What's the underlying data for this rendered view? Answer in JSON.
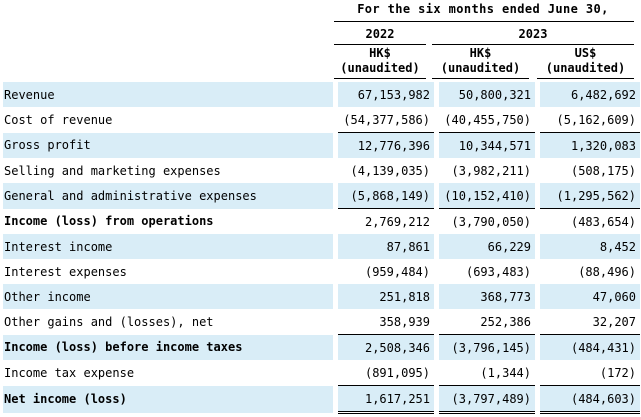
{
  "header": {
    "period": "For the six months ended June 30,",
    "year_a": "2022",
    "year_b": "2023",
    "columns": [
      {
        "currency": "HK$",
        "status": "(unaudited)"
      },
      {
        "currency": "HK$",
        "status": "(unaudited)"
      },
      {
        "currency": "US$",
        "status": "(unaudited)"
      }
    ]
  },
  "rows": [
    {
      "label": "Revenue",
      "v1": "67,153,982",
      "v2": "50,800,321",
      "v3": "6,482,692"
    },
    {
      "label": "Cost of revenue",
      "v1": "(54,377,586)",
      "v2": "(40,455,750)",
      "v3": "(5,162,609)"
    },
    {
      "label": "Gross profit",
      "v1": "12,776,396",
      "v2": "10,344,571",
      "v3": "1,320,083"
    },
    {
      "label": "Selling and marketing expenses",
      "v1": "(4,139,035)",
      "v2": "(3,982,211)",
      "v3": "(508,175)"
    },
    {
      "label": "General and administrative expenses",
      "v1": "(5,868,149)",
      "v2": "(10,152,410)",
      "v3": "(1,295,562)"
    },
    {
      "label": "Income (loss) from operations",
      "v1": "2,769,212",
      "v2": "(3,790,050)",
      "v3": "(483,654)"
    },
    {
      "label": "Interest income",
      "v1": "87,861",
      "v2": "66,229",
      "v3": "8,452"
    },
    {
      "label": "Interest expenses",
      "v1": "(959,484)",
      "v2": "(693,483)",
      "v3": "(88,496)"
    },
    {
      "label": "Other income",
      "v1": "251,818",
      "v2": "368,773",
      "v3": "47,060"
    },
    {
      "label": "Other gains and (losses), net",
      "v1": "358,939",
      "v2": "252,386",
      "v3": "32,207"
    },
    {
      "label": "Income (loss) before income taxes",
      "v1": "2,508,346",
      "v2": "(3,796,145)",
      "v3": "(484,431)"
    },
    {
      "label": "Income tax expense",
      "v1": "(891,095)",
      "v2": "(1,344)",
      "v3": "(172)"
    },
    {
      "label": "Net income (loss)",
      "v1": "1,617,251",
      "v2": "(3,797,489)",
      "v3": "(484,603)"
    }
  ]
}
